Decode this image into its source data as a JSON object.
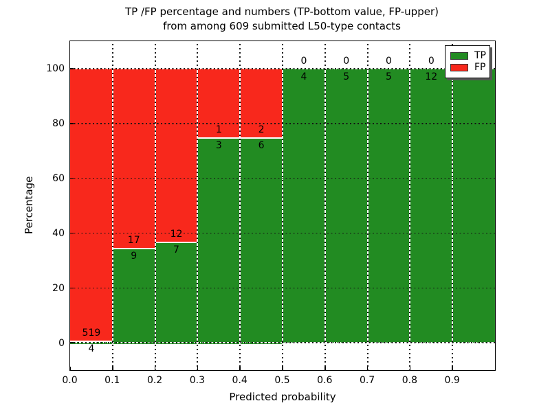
{
  "title": {
    "line1": "TP /FP percentage and numbers (TP-bottom value, FP-upper)",
    "line2": "from among 609 submitted L50-type contacts"
  },
  "axes": {
    "xlabel": "Predicted probability",
    "ylabel": "Percentage",
    "x_tick_labels": [
      "0.0",
      "0.1",
      "0.2",
      "0.3",
      "0.4",
      "0.5",
      "0.6",
      "0.7",
      "0.8",
      "0.9"
    ],
    "x_tick_values": [
      0.0,
      0.1,
      0.2,
      0.3,
      0.4,
      0.5,
      0.6,
      0.7,
      0.8,
      0.9
    ],
    "y_tick_labels": [
      "0",
      "20",
      "40",
      "60",
      "80",
      "100"
    ],
    "y_tick_values": [
      0,
      20,
      40,
      60,
      80,
      100
    ]
  },
  "legend": {
    "items": [
      {
        "label": "TP",
        "color": "#228b22"
      },
      {
        "label": "FP",
        "color": "#f8281c"
      }
    ],
    "position": "upper right"
  },
  "colors": {
    "tp": "#228b22",
    "fp": "#f8281c",
    "grid": "#141414",
    "bar_edge": "#ffffff"
  },
  "chart_data": {
    "type": "bar",
    "stacked": true,
    "units": "percent_of_bin_total",
    "title": "TP /FP percentage and numbers (TP-bottom value, FP-upper) from among 609 submitted L50-type contacts",
    "xlabel": "Predicted probability",
    "ylabel": "Percentage",
    "xlim": [
      0.0,
      1.0
    ],
    "ylim": [
      -10,
      110
    ],
    "grid": true,
    "legend_position": "upper right",
    "total_contacts": 609,
    "bin_edges": [
      0.0,
      0.1,
      0.2,
      0.3,
      0.4,
      0.5,
      0.6,
      0.7,
      0.8,
      0.9,
      1.0
    ],
    "series": [
      {
        "name": "TP",
        "color": "#228b22",
        "counts": [
          4,
          9,
          7,
          3,
          6,
          4,
          5,
          5,
          12,
          3
        ]
      },
      {
        "name": "FP",
        "color": "#f8281c",
        "counts": [
          519,
          17,
          12,
          1,
          2,
          0,
          0,
          0,
          0,
          0
        ]
      }
    ],
    "tp_percent_per_bin": [
      0.76,
      34.62,
      36.84,
      75.0,
      75.0,
      100.0,
      100.0,
      100.0,
      100.0,
      100.0
    ]
  }
}
